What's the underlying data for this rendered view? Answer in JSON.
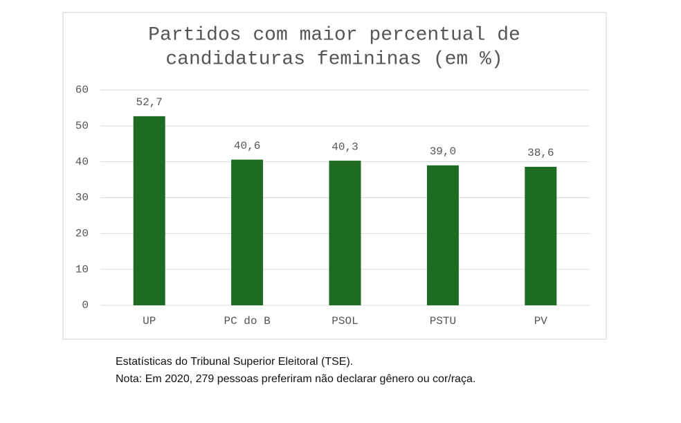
{
  "chart_data": {
    "type": "bar",
    "title_lines": [
      "Partidos com maior percentual de",
      "candidaturas femininas (em %)"
    ],
    "categories": [
      "UP",
      "PC do B",
      "PSOL",
      "PSTU",
      "PV"
    ],
    "values": [
      52.7,
      40.6,
      40.3,
      39.0,
      38.6
    ],
    "value_labels": [
      "52,7",
      "40,6",
      "40,3",
      "39,0",
      "38,6"
    ],
    "color": "#1e6b24",
    "ylim": [
      0,
      60
    ],
    "yticks": [
      0,
      10,
      20,
      30,
      40,
      50,
      60
    ],
    "grid": true,
    "footnotes": [
      "Estatísticas do Tribunal Superior Eleitoral (TSE).",
      "Nota: Em 2020, 279 pessoas preferiram não declarar gênero ou cor/raça."
    ]
  }
}
